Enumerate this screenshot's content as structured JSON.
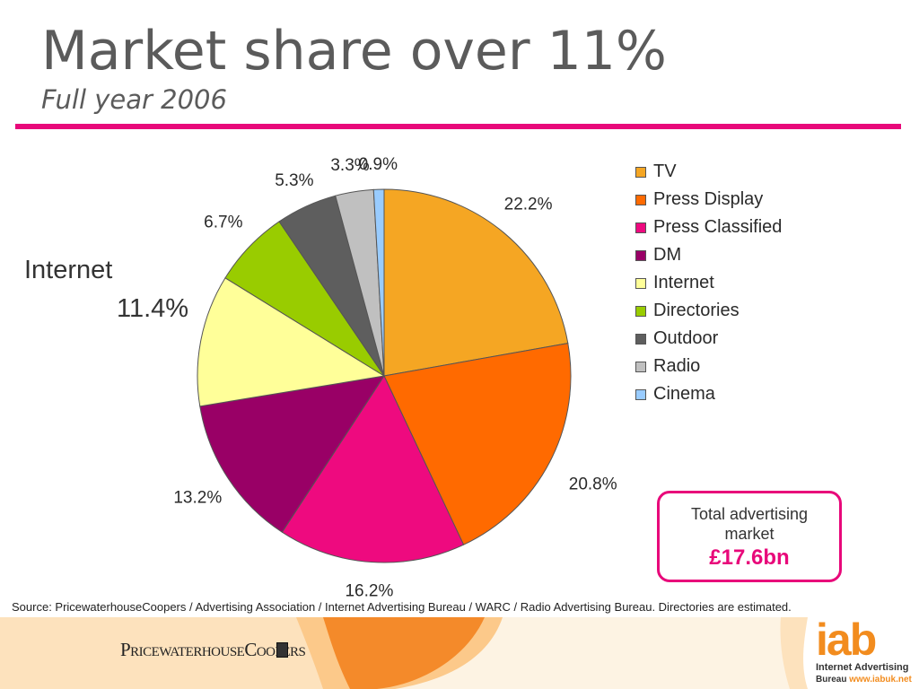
{
  "title": "Market share over 11%",
  "subtitle": "Full year 2006",
  "chart_data": {
    "type": "pie",
    "categories": [
      "TV",
      "Press Display",
      "Press Classified",
      "DM",
      "Internet",
      "Directories",
      "Outdoor",
      "Radio",
      "Cinema"
    ],
    "values": [
      22.2,
      20.8,
      16.2,
      13.2,
      11.4,
      6.7,
      5.3,
      3.3,
      0.9
    ],
    "data_labels": [
      "22.2%",
      "20.8%",
      "16.2%",
      "13.2%",
      "",
      "6.7%",
      "5.3%",
      "3.3%",
      "0.9%"
    ],
    "colors": [
      "#f5a623",
      "#ff6a00",
      "#ee0a7f",
      "#990066",
      "#ffff99",
      "#99cc00",
      "#5e5e5e",
      "#c0c0c0",
      "#99ccff"
    ],
    "legend_position": "right",
    "start_angle_deg": 0,
    "direction": "clockwise"
  },
  "callout": {
    "name": "Internet",
    "value": "11.4%"
  },
  "total_box": {
    "label": "Total advertising market",
    "value": "£17.6bn"
  },
  "source": "Source: PricewaterhouseCoopers / Advertising Association / Internet Advertising Bureau / WARC / Radio Advertising Bureau.  Directories are estimated.",
  "logos": {
    "pwc": "PricewaterhouseCoopers",
    "iab": "iab",
    "iab_line1": "Internet Advertising",
    "iab_line2_prefix": "Bureau ",
    "iab_url": "www.iabuk.net"
  },
  "colors": {
    "accent": "#e8087a",
    "footer_orange": "#f28c1e"
  }
}
